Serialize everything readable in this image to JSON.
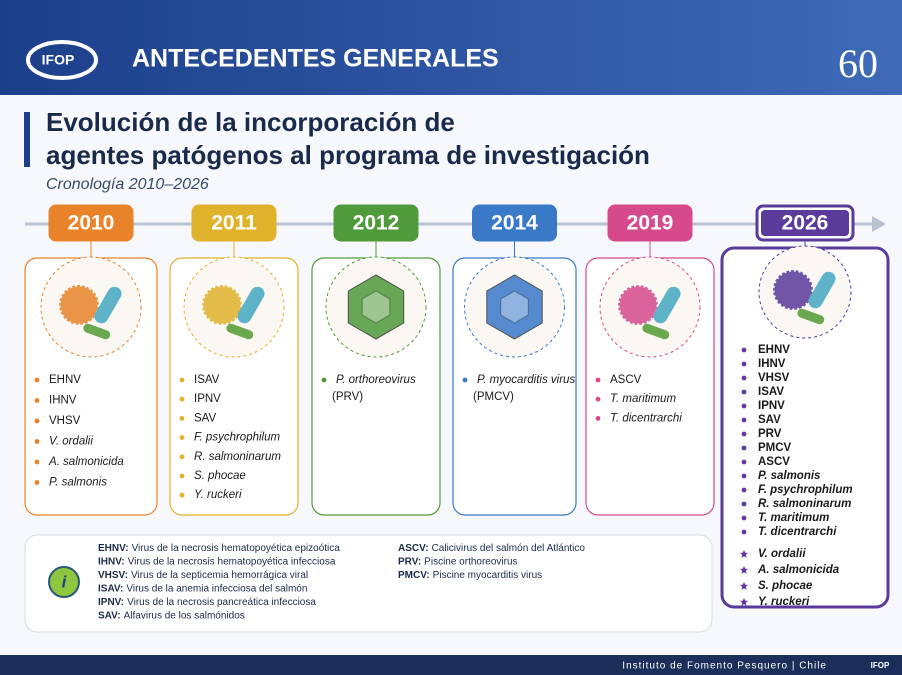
{
  "header": {
    "logo": "IFOP",
    "title": "ANTECEDENTES GENERALES",
    "anniversary": "60"
  },
  "title_lines": [
    "Evolución de la incorporación de",
    "agentes patógenos al programa de investigación"
  ],
  "subtitle": "Cronología 2010–2026",
  "timeline": [
    {
      "year": "2010",
      "color": "#e8832a",
      "items": [
        {
          "text": "EHNV",
          "italic": false
        },
        {
          "text": "IHNV",
          "italic": false
        },
        {
          "text": "VHSV",
          "italic": false
        },
        {
          "text": "V. ordalii",
          "italic": true
        },
        {
          "text": "A. salmonicida",
          "italic": true
        },
        {
          "text": "P. salmonis",
          "italic": true
        }
      ]
    },
    {
      "year": "2011",
      "color": "#e0b22c",
      "items": [
        {
          "text": "ISAV",
          "italic": false
        },
        {
          "text": "IPNV",
          "italic": false
        },
        {
          "text": "SAV",
          "italic": false
        },
        {
          "text": "F. psychrophilum",
          "italic": true
        },
        {
          "text": "R. salmoninarum",
          "italic": true
        },
        {
          "text": "S. phocae",
          "italic": true
        },
        {
          "text": "Y. ruckeri",
          "italic": true
        }
      ]
    },
    {
      "year": "2012",
      "color": "#4f9a3a",
      "items": [
        {
          "text": "P. orthoreovirus",
          "italic": true,
          "suffix": "(PRV)"
        }
      ]
    },
    {
      "year": "2014",
      "color": "#3a78c8",
      "items": [
        {
          "text": "P. myocarditis virus",
          "italic": true,
          "suffix": "(PMCV)"
        }
      ]
    },
    {
      "year": "2019",
      "color": "#d64a8c",
      "items": [
        {
          "text": "ASCV",
          "italic": false
        },
        {
          "text": "T. maritimum",
          "italic": true
        },
        {
          "text": "T. dicentrarchi",
          "italic": true
        }
      ]
    },
    {
      "year": "2026",
      "color": "#5a3a9a",
      "items": [
        {
          "text": "EHNV",
          "italic": false,
          "bullet": "dot"
        },
        {
          "text": "IHNV",
          "italic": false,
          "bullet": "dot"
        },
        {
          "text": "VHSV",
          "italic": false,
          "bullet": "dot"
        },
        {
          "text": "ISAV",
          "italic": false,
          "bullet": "dot"
        },
        {
          "text": "IPNV",
          "italic": false,
          "bullet": "dot"
        },
        {
          "text": "SAV",
          "italic": false,
          "bullet": "dot"
        },
        {
          "text": "PRV",
          "italic": false,
          "bullet": "dot"
        },
        {
          "text": "PMCV",
          "italic": false,
          "bullet": "dot"
        },
        {
          "text": "ASCV",
          "italic": false,
          "bullet": "dot"
        },
        {
          "text": "P. salmonis",
          "italic": true,
          "bullet": "dot"
        },
        {
          "text": "F. psychrophilum",
          "italic": true,
          "bullet": "dot"
        },
        {
          "text": "R. salmoninarum",
          "italic": true,
          "bullet": "dot"
        },
        {
          "text": "T. maritimum",
          "italic": true,
          "bullet": "dot"
        },
        {
          "text": "T. dicentrarchi",
          "italic": true,
          "bullet": "dot"
        },
        {
          "text": "V. ordalii",
          "italic": true,
          "bullet": "star"
        },
        {
          "text": "A. salmonicida",
          "italic": true,
          "bullet": "star"
        },
        {
          "text": "S. phocae",
          "italic": true,
          "bullet": "star"
        },
        {
          "text": "Y. ruckeri",
          "italic": true,
          "bullet": "star"
        }
      ]
    }
  ],
  "legend": {
    "icon": "i",
    "columns": [
      [
        {
          "term": "EHNV:",
          "definition": "Virus de la necrosis hematopoyética epizoótica"
        },
        {
          "term": "IHNV:",
          "definition": "Virus de la necrosis hematopoyética infecciosa"
        },
        {
          "term": "VHSV:",
          "definition": "Virus de la septicemia hemorrágica viral"
        },
        {
          "term": "ISAV:",
          "definition": "Virus de la anemia infecciosa del salmón"
        },
        {
          "term": "IPNV:",
          "definition": "Virus de la necrosis pancreática infecciosa"
        },
        {
          "term": "SAV:",
          "definition": "Alfavirus de los salmónidos"
        }
      ],
      [
        {
          "term": "ASCV:",
          "definition": "Calicivirus del salmón del Atlántico"
        },
        {
          "term": "PRV:",
          "definition": "Piscine orthoreovirus"
        },
        {
          "term": "PMCV:",
          "definition": "Piscine myocarditis virus"
        }
      ]
    ]
  },
  "footer": "Instituto de Fomento Pesquero | Chile"
}
